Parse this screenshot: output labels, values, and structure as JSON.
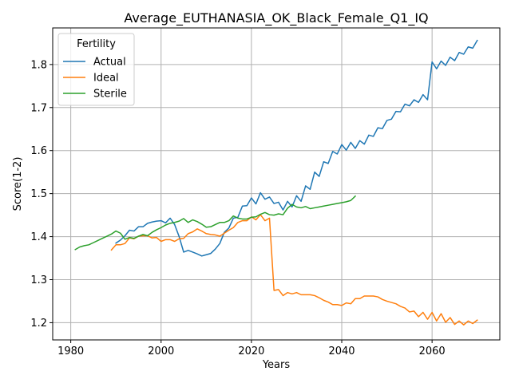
{
  "chart_data": {
    "type": "line",
    "title": "Average_EUTHANASIA_OK_Black_Female_Q1_IQ",
    "xlabel": "Years",
    "ylabel": "Score(1-2)",
    "xlim": [
      1976,
      2075
    ],
    "ylim": [
      1.16,
      1.885
    ],
    "xticks": [
      1980,
      2000,
      2020,
      2040,
      2060
    ],
    "yticks": [
      1.2,
      1.3,
      1.4,
      1.5,
      1.6,
      1.7,
      1.8
    ],
    "grid": true,
    "legend": {
      "title": "Fertility",
      "placement": "top-left"
    },
    "series": [
      {
        "name": "Actual",
        "color": "#1f77b4",
        "x": [
          1990,
          1991,
          1992,
          1993,
          1994,
          1995,
          1996,
          1997,
          1998,
          1999,
          2000,
          2001,
          2002,
          2003,
          2004,
          2005,
          2006,
          2007,
          2008,
          2009,
          2010,
          2011,
          2012,
          2013,
          2014,
          2015,
          2016,
          2017,
          2018,
          2019,
          2020,
          2021,
          2022,
          2023,
          2024,
          2025,
          2026,
          2027,
          2028,
          2029,
          2030,
          2031,
          2032,
          2033,
          2034,
          2035,
          2036,
          2037,
          2038,
          2039,
          2040,
          2041,
          2042,
          2043,
          2044,
          2045,
          2046,
          2047,
          2048,
          2049,
          2050,
          2051,
          2052,
          2053,
          2054,
          2055,
          2056,
          2057,
          2058,
          2059,
          2060,
          2061,
          2062,
          2063,
          2064,
          2065,
          2066,
          2067,
          2068,
          2069,
          2070
        ],
        "values": [
          1.385,
          1.392,
          1.402,
          1.415,
          1.413,
          1.423,
          1.423,
          1.431,
          1.434,
          1.436,
          1.437,
          1.432,
          1.443,
          1.428,
          1.4,
          1.364,
          1.368,
          1.364,
          1.36,
          1.355,
          1.358,
          1.361,
          1.371,
          1.384,
          1.41,
          1.42,
          1.443,
          1.445,
          1.471,
          1.472,
          1.49,
          1.476,
          1.502,
          1.487,
          1.492,
          1.477,
          1.48,
          1.462,
          1.482,
          1.469,
          1.495,
          1.482,
          1.518,
          1.51,
          1.55,
          1.54,
          1.574,
          1.57,
          1.598,
          1.592,
          1.614,
          1.601,
          1.619,
          1.605,
          1.623,
          1.615,
          1.636,
          1.633,
          1.653,
          1.651,
          1.67,
          1.673,
          1.691,
          1.69,
          1.708,
          1.704,
          1.718,
          1.712,
          1.73,
          1.718,
          1.806,
          1.79,
          1.808,
          1.798,
          1.817,
          1.809,
          1.828,
          1.824,
          1.841,
          1.838,
          1.856
        ]
      },
      {
        "name": "Ideal",
        "color": "#ff7f0e",
        "x": [
          1989,
          1990,
          1991,
          1992,
          1993,
          1994,
          1995,
          1996,
          1997,
          1998,
          1999,
          2000,
          2001,
          2002,
          2003,
          2004,
          2005,
          2006,
          2007,
          2008,
          2009,
          2010,
          2011,
          2012,
          2013,
          2014,
          2015,
          2016,
          2017,
          2018,
          2019,
          2020,
          2021,
          2022,
          2023,
          2024,
          2025,
          2026,
          2027,
          2028,
          2029,
          2030,
          2031,
          2032,
          2033,
          2034,
          2035,
          2036,
          2037,
          2038,
          2039,
          2040,
          2041,
          2042,
          2043,
          2044,
          2045,
          2046,
          2047,
          2048,
          2049,
          2050,
          2051,
          2052,
          2053,
          2054,
          2055,
          2056,
          2057,
          2058,
          2059,
          2060,
          2061,
          2062,
          2063,
          2064,
          2065,
          2066,
          2067,
          2068,
          2069,
          2070
        ],
        "values": [
          1.369,
          1.381,
          1.381,
          1.384,
          1.397,
          1.395,
          1.401,
          1.402,
          1.402,
          1.397,
          1.398,
          1.389,
          1.393,
          1.393,
          1.389,
          1.395,
          1.396,
          1.407,
          1.411,
          1.418,
          1.413,
          1.407,
          1.405,
          1.404,
          1.401,
          1.408,
          1.415,
          1.421,
          1.433,
          1.437,
          1.437,
          1.446,
          1.439,
          1.451,
          1.437,
          1.443,
          1.275,
          1.277,
          1.263,
          1.27,
          1.267,
          1.27,
          1.265,
          1.265,
          1.265,
          1.263,
          1.258,
          1.252,
          1.248,
          1.242,
          1.242,
          1.24,
          1.246,
          1.244,
          1.256,
          1.256,
          1.262,
          1.262,
          1.262,
          1.26,
          1.254,
          1.25,
          1.247,
          1.244,
          1.238,
          1.234,
          1.225,
          1.227,
          1.214,
          1.224,
          1.208,
          1.224,
          1.204,
          1.221,
          1.201,
          1.212,
          1.196,
          1.204,
          1.195,
          1.204,
          1.198,
          1.206
        ]
      },
      {
        "name": "Sterile",
        "color": "#2ca02c",
        "x": [
          1981,
          1982,
          1983,
          1984,
          1985,
          1986,
          1987,
          1988,
          1989,
          1990,
          1991,
          1992,
          1993,
          1994,
          1995,
          1996,
          1997,
          1998,
          1999,
          2000,
          2001,
          2002,
          2003,
          2004,
          2005,
          2006,
          2007,
          2008,
          2009,
          2010,
          2011,
          2012,
          2013,
          2014,
          2015,
          2016,
          2017,
          2018,
          2019,
          2020,
          2021,
          2022,
          2023,
          2024,
          2025,
          2026,
          2027,
          2028,
          2029,
          2030,
          2031,
          2032,
          2033,
          2034,
          2035,
          2036,
          2037,
          2038,
          2039,
          2040,
          2041,
          2042,
          2043
        ],
        "values": [
          1.37,
          1.376,
          1.379,
          1.381,
          1.386,
          1.391,
          1.396,
          1.401,
          1.406,
          1.413,
          1.408,
          1.394,
          1.398,
          1.396,
          1.401,
          1.405,
          1.402,
          1.41,
          1.416,
          1.421,
          1.427,
          1.431,
          1.433,
          1.436,
          1.442,
          1.433,
          1.439,
          1.435,
          1.429,
          1.422,
          1.423,
          1.428,
          1.433,
          1.433,
          1.437,
          1.448,
          1.443,
          1.441,
          1.441,
          1.445,
          1.446,
          1.452,
          1.456,
          1.451,
          1.45,
          1.453,
          1.451,
          1.466,
          1.475,
          1.469,
          1.467,
          1.47,
          1.465,
          1.467,
          1.469,
          1.471,
          1.473,
          1.475,
          1.477,
          1.479,
          1.481,
          1.484,
          1.494
        ]
      }
    ]
  }
}
